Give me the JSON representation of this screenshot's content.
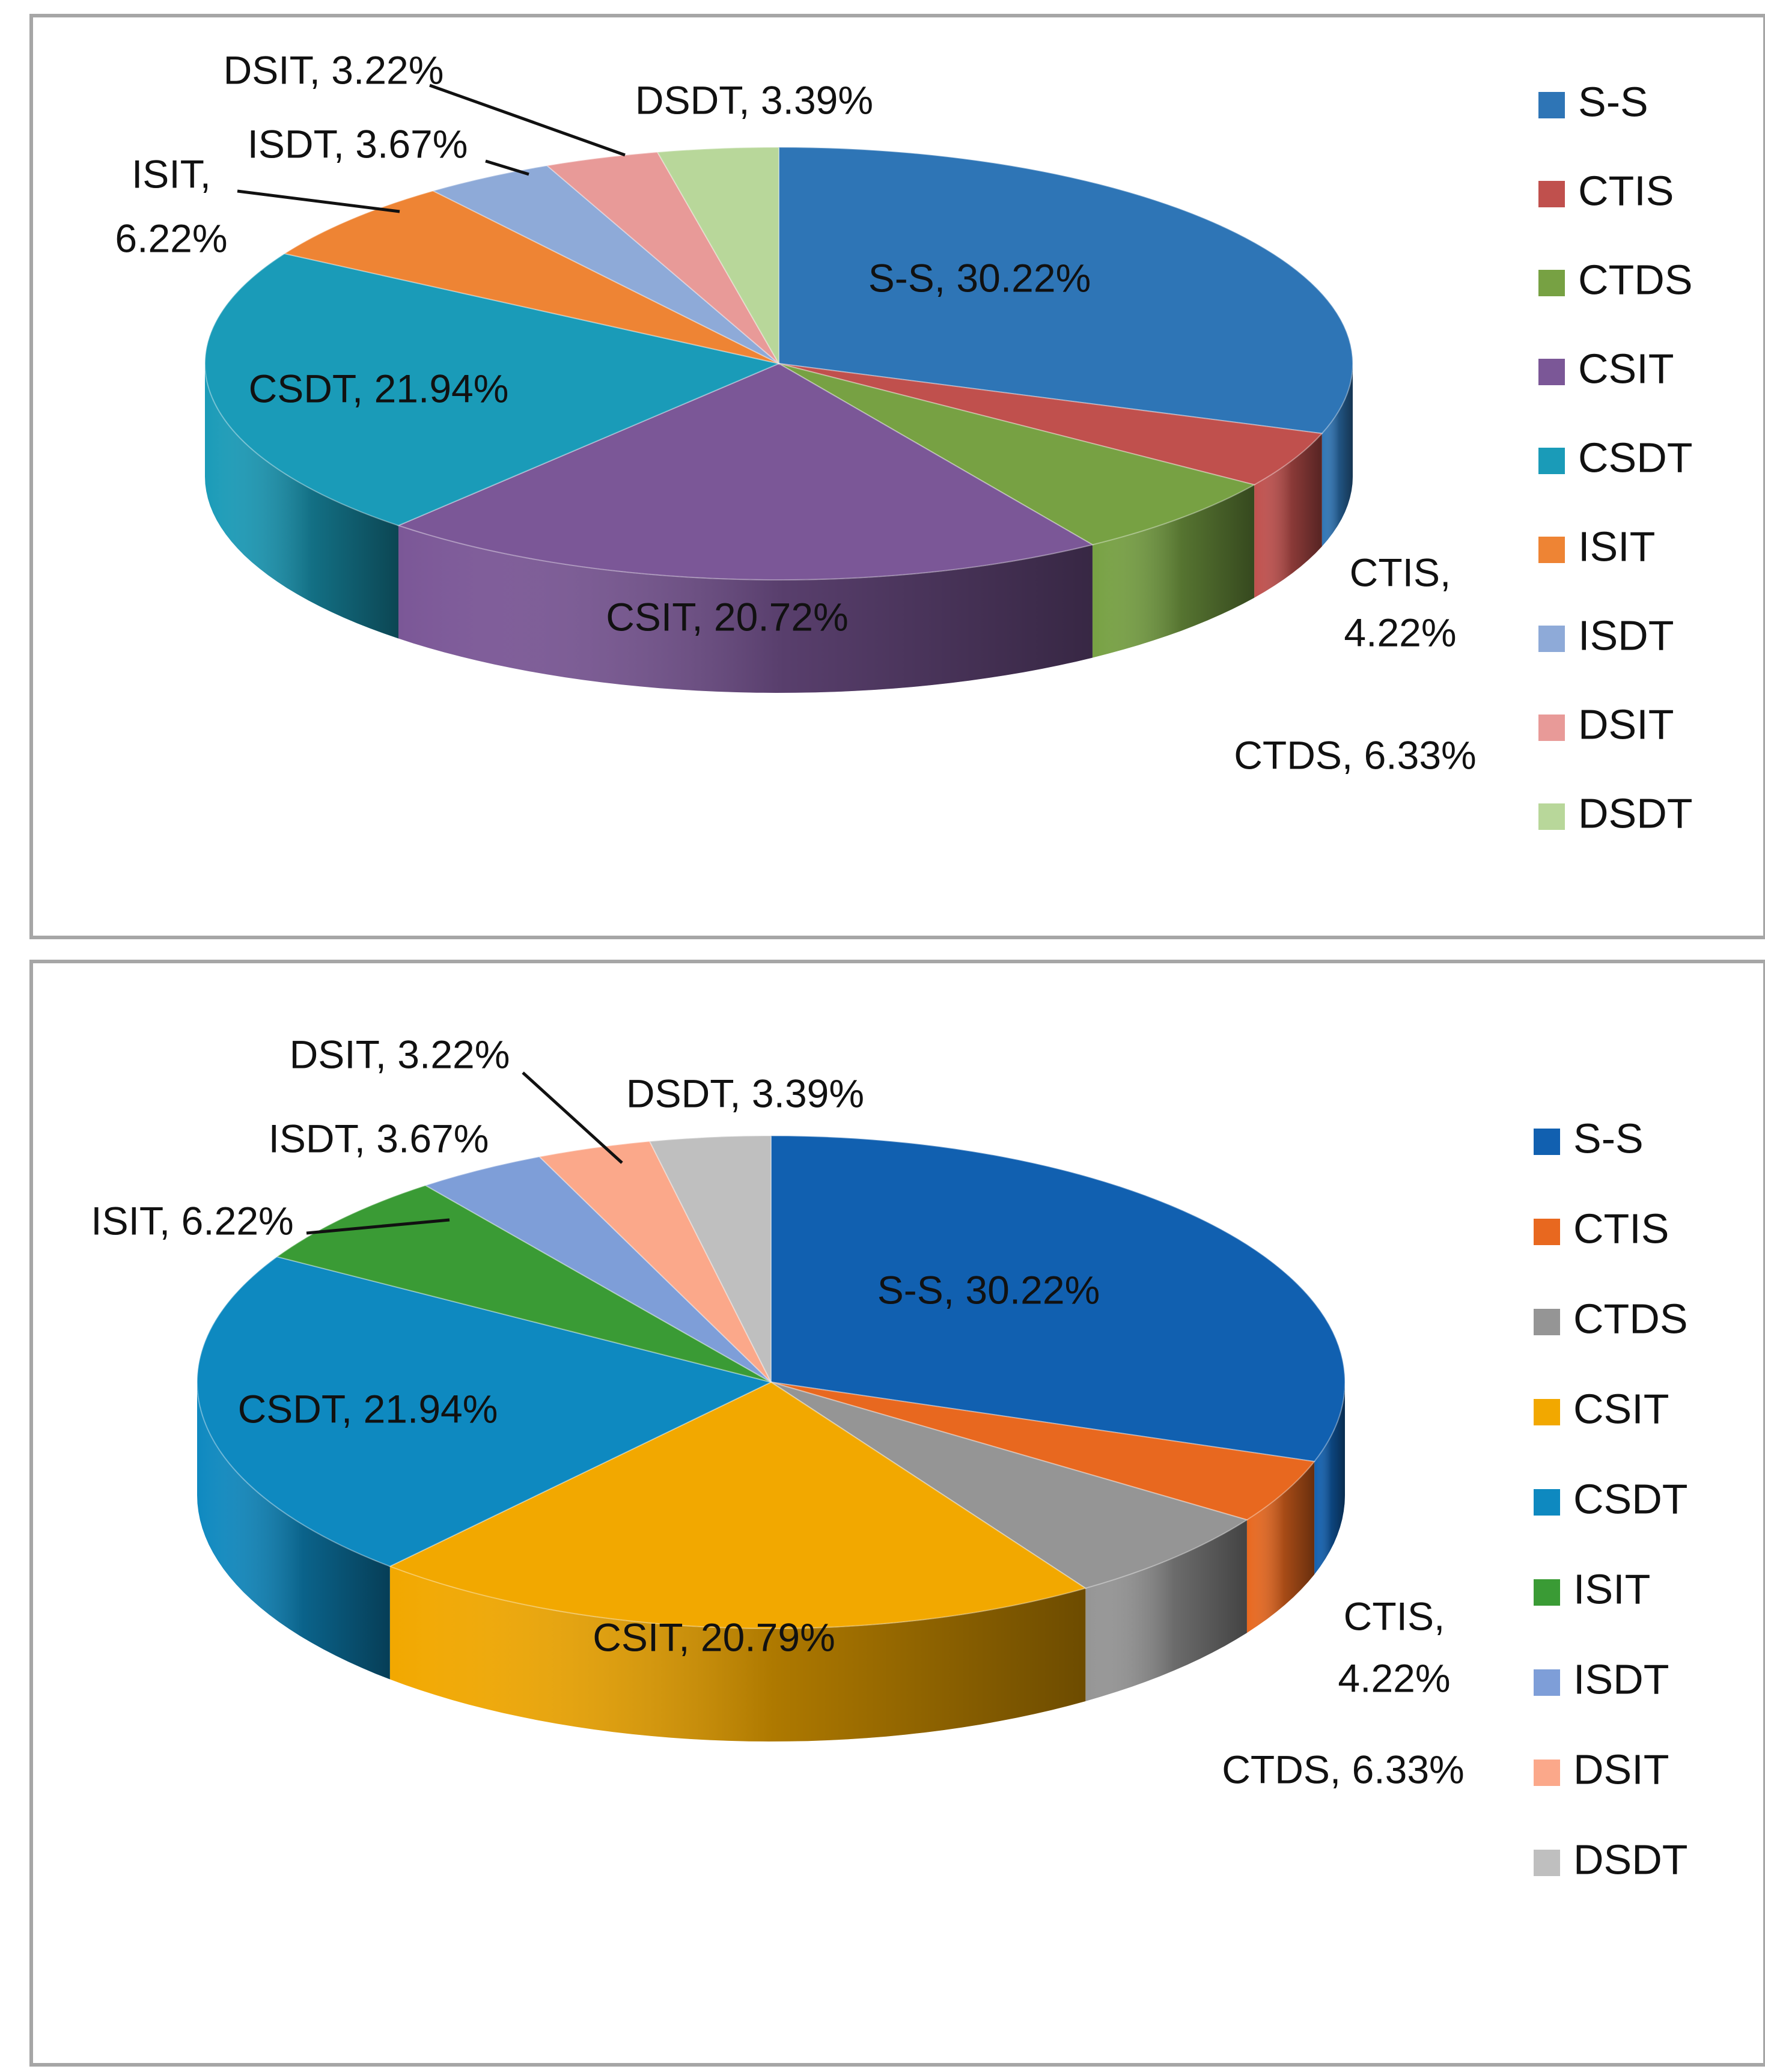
{
  "chart_data": [
    {
      "type": "pie",
      "variant": "3d",
      "title": "",
      "categories": [
        "S-S",
        "CTIS",
        "CTDS",
        "CSIT",
        "CSDT",
        "ISIT",
        "ISDT",
        "DSIT",
        "DSDT"
      ],
      "values": [
        30.22,
        4.22,
        6.33,
        20.72,
        21.94,
        6.22,
        3.67,
        3.22,
        3.39
      ],
      "colors": [
        "#2e75b6",
        "#c0504d",
        "#77a143",
        "#7b5797",
        "#1a9bb8",
        "#ee8434",
        "#8eaad8",
        "#e89a98",
        "#b8d79a"
      ],
      "data_labels": [
        "S-S, 30.22%",
        "CTIS, 4.22%",
        "CTDS, 6.33%",
        "CSIT, 20.72%",
        "CSDT, 21.94%",
        "ISIT, 6.22%",
        "ISDT, 3.67%",
        "DSIT, 3.22%",
        "DSDT, 3.39%"
      ],
      "legend": [
        "S-S",
        "CTIS",
        "CTDS",
        "CSIT",
        "CSDT",
        "ISIT",
        "ISDT",
        "DSIT",
        "DSDT"
      ],
      "legend_position": "right"
    },
    {
      "type": "pie",
      "variant": "3d",
      "title": "",
      "categories": [
        "S-S",
        "CTIS",
        "CTDS",
        "CSIT",
        "CSDT",
        "ISIT",
        "ISDT",
        "DSIT",
        "DSDT"
      ],
      "values": [
        30.22,
        4.22,
        6.33,
        20.79,
        21.94,
        6.22,
        3.67,
        3.22,
        3.39
      ],
      "colors": [
        "#1160b0",
        "#e8681f",
        "#959595",
        "#f2a800",
        "#0e89c0",
        "#3a9b35",
        "#7e9ed8",
        "#fba88a",
        "#bfbfbf"
      ],
      "data_labels": [
        "S-S, 30.22%",
        "CTIS, 4.22%",
        "CTDS, 6.33%",
        "CSIT, 20.79%",
        "CSDT, 21.94%",
        "ISIT, 6.22%",
        "ISDT, 3.67%",
        "DSIT, 3.22%",
        "DSDT, 3.39%"
      ],
      "legend": [
        "S-S",
        "CTIS",
        "CTDS",
        "CSIT",
        "CSDT",
        "ISIT",
        "ISDT",
        "DSIT",
        "DSDT"
      ],
      "legend_position": "right"
    }
  ]
}
